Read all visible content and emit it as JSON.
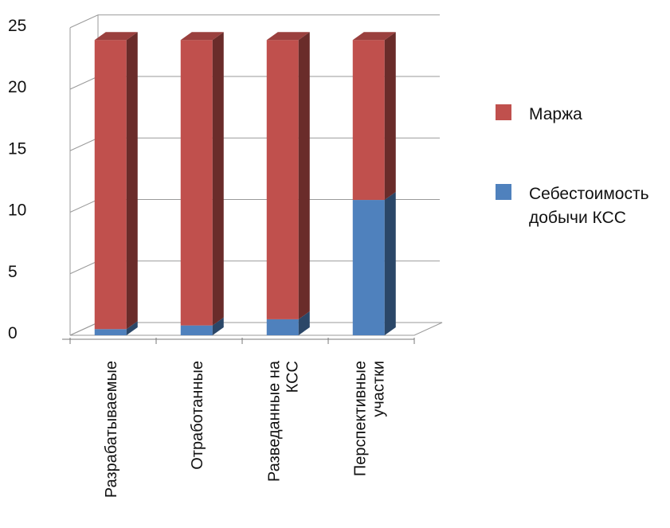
{
  "chart_data": {
    "type": "bar",
    "stacked": true,
    "three_d": true,
    "categories": [
      [
        "Разрабатываемые"
      ],
      [
        "Отработанные"
      ],
      [
        "Разведанные на",
        "КСС"
      ],
      [
        "Перспективные",
        "участки"
      ]
    ],
    "series": [
      {
        "name": "Себестоимость добычи КСС",
        "legend_lines": [
          "Себестоимость",
          "добычи КСС"
        ],
        "color": "#4f81bd",
        "values": [
          0.5,
          0.8,
          1.3,
          11
        ]
      },
      {
        "name": "Маржа",
        "legend_lines": [
          "Маржа"
        ],
        "color": "#c0504d",
        "values": [
          23.5,
          23.2,
          22.7,
          13
        ]
      }
    ],
    "y_ticks": [
      "0",
      "5",
      "10",
      "15",
      "20",
      "25"
    ],
    "ylim": [
      0,
      25
    ],
    "grid": true,
    "legend_position": "right"
  }
}
